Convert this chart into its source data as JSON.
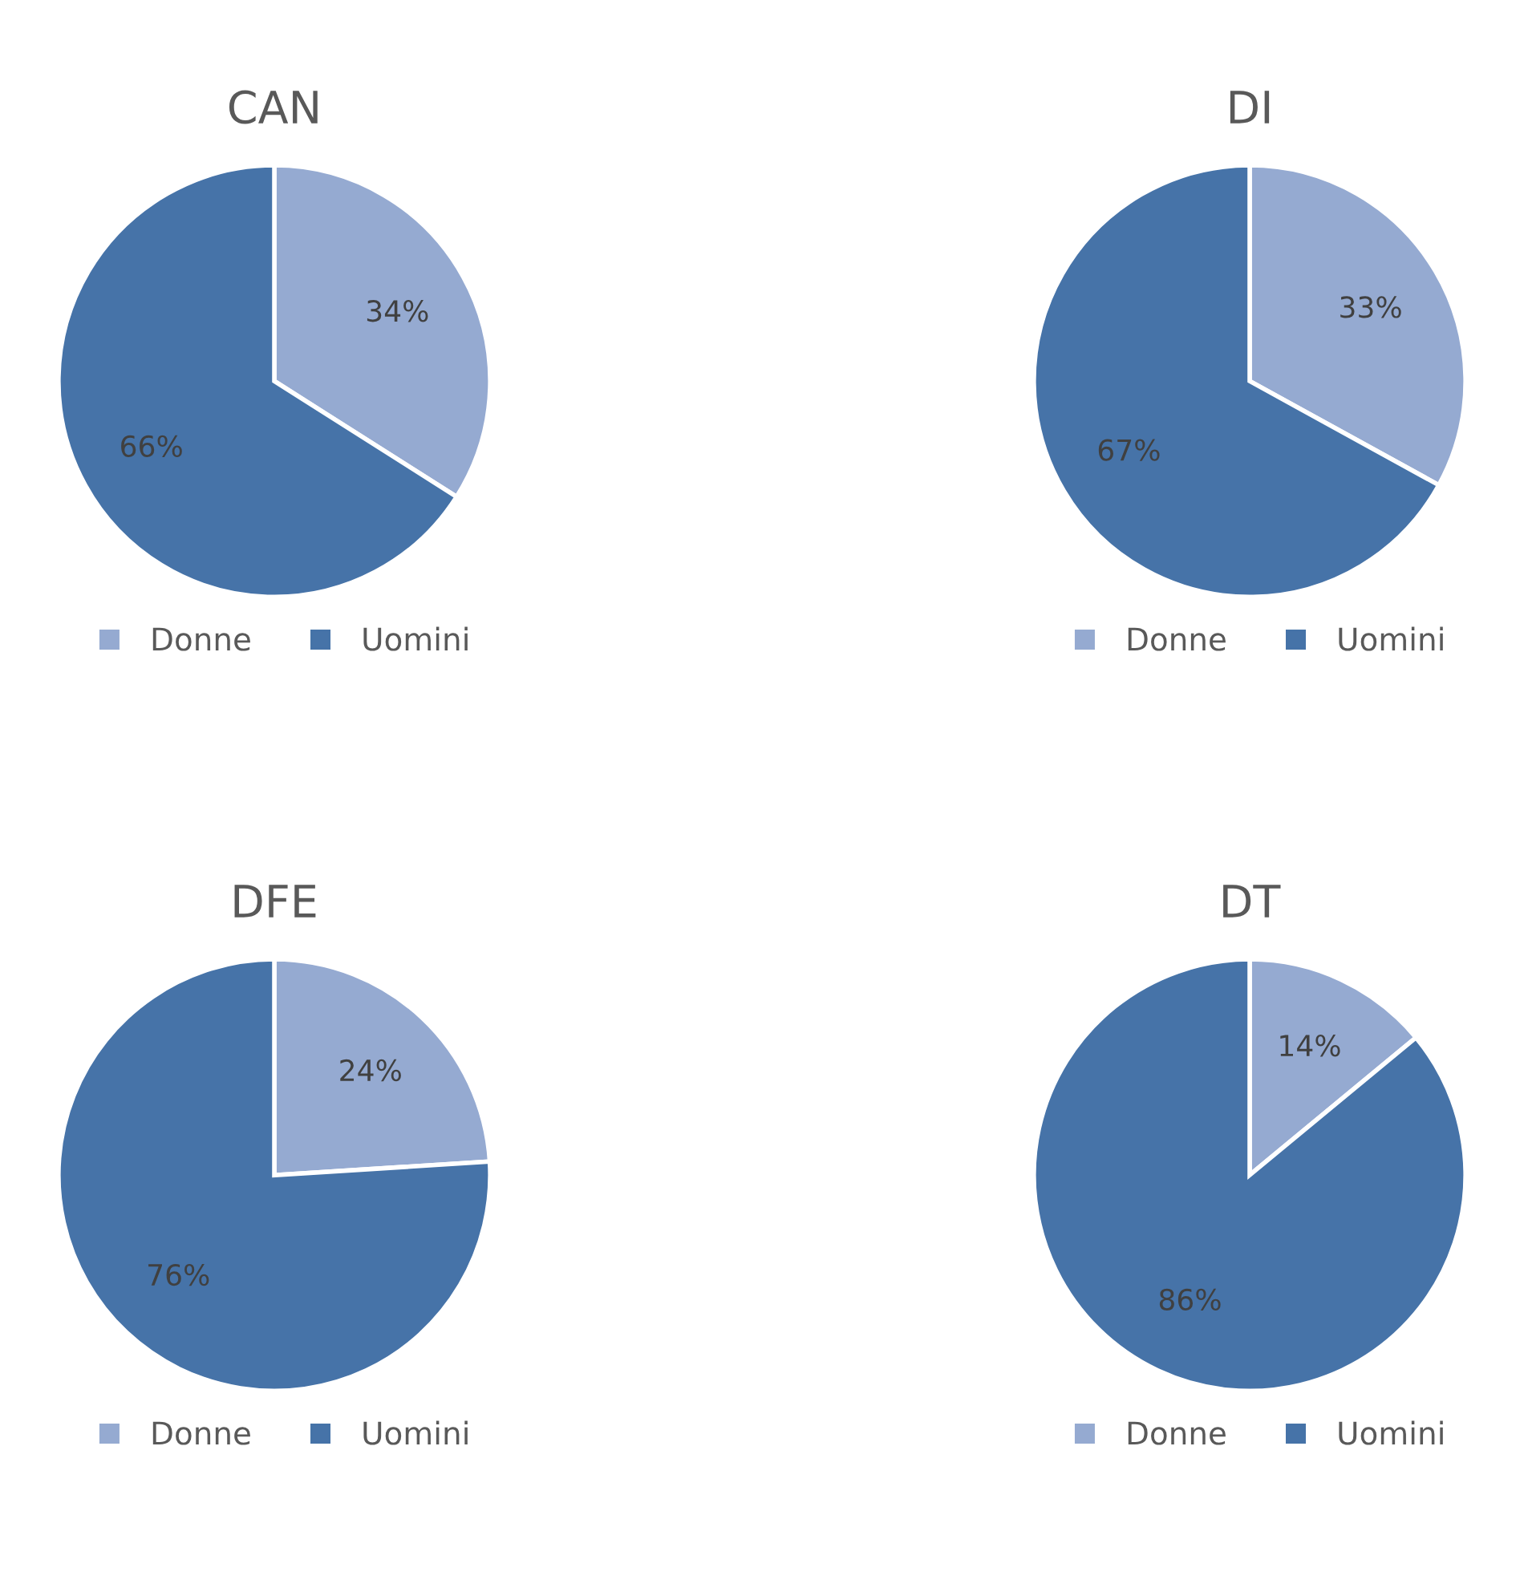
{
  "chart_data": [
    {
      "type": "pie",
      "title": "CAN",
      "categories": [
        "Donne",
        "Uomini"
      ],
      "values": [
        34,
        66
      ],
      "colors": [
        "#95aad1",
        "#4673a8"
      ],
      "value_labels": [
        "34%",
        "66%"
      ],
      "legend": "bottom"
    },
    {
      "type": "pie",
      "title": "DI",
      "categories": [
        "Donne",
        "Uomini"
      ],
      "values": [
        33,
        67
      ],
      "colors": [
        "#95aad1",
        "#4673a8"
      ],
      "value_labels": [
        "33%",
        "67%"
      ],
      "legend": "bottom"
    },
    {
      "type": "pie",
      "title": "DFE",
      "categories": [
        "Donne",
        "Uomini"
      ],
      "values": [
        24,
        76
      ],
      "colors": [
        "#95aad1",
        "#4673a8"
      ],
      "value_labels": [
        "24%",
        "76%"
      ],
      "legend": "bottom"
    },
    {
      "type": "pie",
      "title": "DT",
      "categories": [
        "Donne",
        "Uomini"
      ],
      "values": [
        14,
        86
      ],
      "colors": [
        "#95aad1",
        "#4673a8"
      ],
      "value_labels": [
        "14%",
        "86%"
      ],
      "legend": "bottom"
    }
  ]
}
